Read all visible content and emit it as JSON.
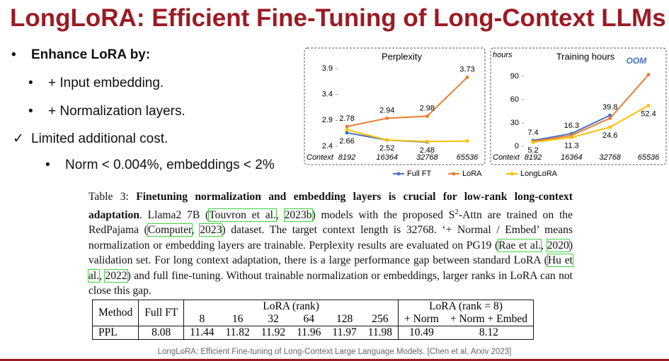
{
  "title": "LongLoRA: Efficient Fine-Tuning of Long-Context LLMs",
  "bullets": [
    {
      "marker": "•",
      "text": "Enhance LoRA by:"
    },
    {
      "marker": "•",
      "text": "+ Input embedding."
    },
    {
      "marker": "•",
      "text": "+ Normalization layers."
    },
    {
      "marker": "✓",
      "text": "Limited additional cost."
    },
    {
      "marker": "•",
      "text": "Norm < 0.004%, embeddings < 2%"
    }
  ],
  "chart_data": [
    {
      "type": "line",
      "title": "Perplexity",
      "x_label": "Context",
      "categories": [
        "8192",
        "16364",
        "32768",
        "65536"
      ],
      "ylim": [
        2.4,
        3.9
      ],
      "yticks": [
        2.4,
        2.9,
        3.4,
        3.9
      ],
      "series": [
        {
          "name": "Full FT",
          "color": "#4472c4",
          "values": [
            2.66,
            2.52,
            2.48,
            null
          ],
          "value_labels": [
            "2.66",
            "2.52",
            "2.48",
            null
          ]
        },
        {
          "name": "LoRA",
          "color": "#ed7d31",
          "values": [
            2.78,
            2.94,
            2.98,
            3.73
          ],
          "value_labels": [
            "2.78",
            "2.94",
            "2.98",
            "3.73"
          ]
        },
        {
          "name": "LongLoRA",
          "color": "#ffc000",
          "values": [
            2.72,
            2.52,
            2.49,
            2.5
          ]
        }
      ]
    },
    {
      "type": "line",
      "title": "Training hours",
      "y_label": "hours",
      "x_label": "Context",
      "annotation": "OOM",
      "categories": [
        "8192",
        "16364",
        "32768",
        "65536"
      ],
      "ylim": [
        0,
        100
      ],
      "yticks": [
        0,
        30,
        60,
        90
      ],
      "series": [
        {
          "name": "Full FT",
          "color": "#4472c4",
          "values": [
            7.4,
            16.3,
            39.8,
            null
          ],
          "value_labels": [
            "7.4",
            "16.3",
            "39.8",
            null
          ]
        },
        {
          "name": "LoRA",
          "color": "#ed7d31",
          "values": [
            6,
            14,
            36,
            92
          ]
        },
        {
          "name": "LongLoRA",
          "color": "#ffc000",
          "values": [
            5.2,
            11.3,
            24.6,
            52.4
          ],
          "value_labels": [
            "5.2",
            "11.3",
            "24.6",
            "52.4"
          ]
        }
      ]
    }
  ],
  "caption": {
    "parts": [
      "Table 3: ",
      "Finetuning normalization and embedding layers is crucial for low-rank long-context adaptation",
      ". Llama2 7B (",
      "Touvron et al.",
      ", ",
      "2023b",
      ") models with the proposed S",
      "2",
      "-Attn are trained on the RedPajama (",
      "Computer",
      ", ",
      "2023",
      ") dataset. The target context length is 32768. ‘+ Normal / Embed’ means normalization or embedding layers are trainable. Perplexity results are evaluated on PG19 (",
      "Rae et al.",
      ", ",
      "2020",
      ") validation set. For long context adaptation, there is a large performance gap between standard LoRA (",
      "Hu et al.",
      ", ",
      "2022",
      ") and full fine-tuning. Without trainable normalization or embeddings, larger ranks in LoRA can not close this gap."
    ]
  },
  "table": {
    "header": [
      "Method",
      "Full FT",
      "LoRA (rank)",
      "LoRA (rank = 8)"
    ],
    "subheader": [
      8,
      16,
      32,
      64,
      128,
      256,
      "+ Norm",
      "+ Norm + Embed"
    ],
    "rows": [
      [
        "PPL",
        8.08,
        11.44,
        11.82,
        11.92,
        11.96,
        11.97,
        11.98,
        10.49,
        8.12
      ]
    ]
  },
  "footer": "LongLoRA: Efficient Fine-tuning of Long-Context Large Language Models. [Chen et al, Arxiv 2023]"
}
